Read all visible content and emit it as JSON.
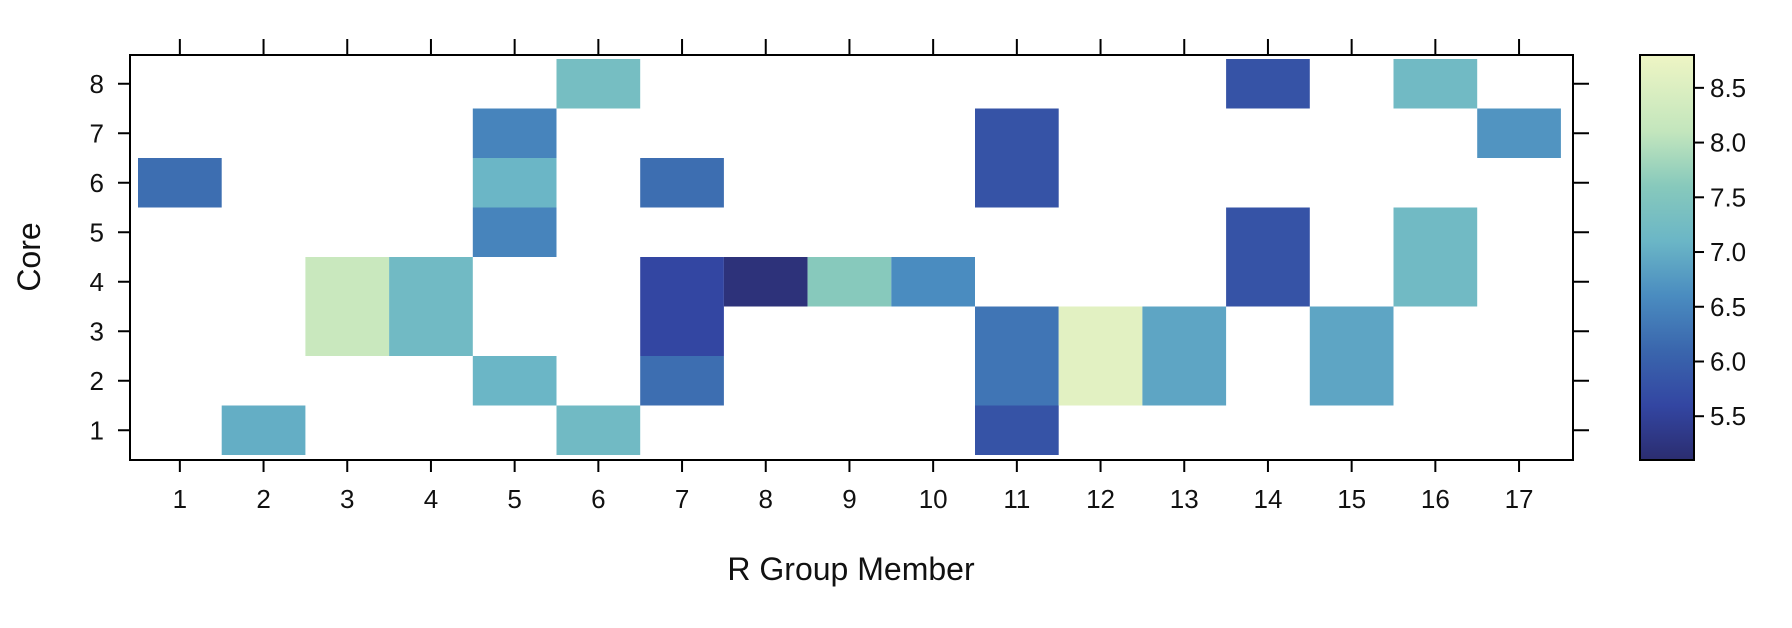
{
  "chart_data": {
    "type": "heatmap",
    "title": "",
    "xlabel": "R Group Member",
    "ylabel": "Core",
    "x_ticks": [
      "1",
      "2",
      "3",
      "4",
      "5",
      "6",
      "7",
      "8",
      "9",
      "10",
      "11",
      "12",
      "13",
      "14",
      "15",
      "16",
      "17"
    ],
    "y_ticks": [
      "1",
      "2",
      "3",
      "4",
      "5",
      "6",
      "7",
      "8"
    ],
    "colorbar": {
      "range": [
        5.1,
        8.8
      ],
      "ticks": [
        "5.5",
        "6.0",
        "6.5",
        "7.0",
        "7.5",
        "8.0",
        "8.5"
      ],
      "tick_values": [
        5.5,
        6.0,
        6.5,
        7.0,
        7.5,
        8.0,
        8.5
      ],
      "stops": [
        {
          "v": 5.1,
          "c": "#2b2d70"
        },
        {
          "v": 5.6,
          "c": "#3346a2"
        },
        {
          "v": 6.1,
          "c": "#3a66ad"
        },
        {
          "v": 6.6,
          "c": "#4a8cc0"
        },
        {
          "v": 7.1,
          "c": "#6bb6c6"
        },
        {
          "v": 7.6,
          "c": "#87c9bc"
        },
        {
          "v": 8.1,
          "c": "#c3e6bd"
        },
        {
          "v": 8.8,
          "c": "#eef5c4"
        }
      ]
    },
    "cells": [
      {
        "x": 1,
        "y": 6,
        "value": 6.2
      },
      {
        "x": 2,
        "y": 1,
        "value": 7.0
      },
      {
        "x": 3,
        "y": 3,
        "value": 8.2
      },
      {
        "x": 3,
        "y": 4,
        "value": 8.2
      },
      {
        "x": 4,
        "y": 3,
        "value": 7.2
      },
      {
        "x": 4,
        "y": 4,
        "value": 7.2
      },
      {
        "x": 5,
        "y": 2,
        "value": 7.1
      },
      {
        "x": 5,
        "y": 5,
        "value": 6.5
      },
      {
        "x": 5,
        "y": 6,
        "value": 7.1
      },
      {
        "x": 5,
        "y": 7,
        "value": 6.5
      },
      {
        "x": 6,
        "y": 1,
        "value": 7.2
      },
      {
        "x": 6,
        "y": 8,
        "value": 7.3
      },
      {
        "x": 7,
        "y": 2,
        "value": 6.2
      },
      {
        "x": 7,
        "y": 3,
        "value": 5.6
      },
      {
        "x": 7,
        "y": 4,
        "value": 5.6
      },
      {
        "x": 7,
        "y": 6,
        "value": 6.2
      },
      {
        "x": 8,
        "y": 4,
        "value": 5.2
      },
      {
        "x": 9,
        "y": 4,
        "value": 7.6
      },
      {
        "x": 10,
        "y": 4,
        "value": 6.6
      },
      {
        "x": 11,
        "y": 1,
        "value": 5.8
      },
      {
        "x": 11,
        "y": 2,
        "value": 6.3
      },
      {
        "x": 11,
        "y": 3,
        "value": 6.3
      },
      {
        "x": 11,
        "y": 6,
        "value": 5.8
      },
      {
        "x": 11,
        "y": 7,
        "value": 5.8
      },
      {
        "x": 12,
        "y": 2,
        "value": 8.6
      },
      {
        "x": 12,
        "y": 3,
        "value": 8.6
      },
      {
        "x": 13,
        "y": 2,
        "value": 6.9
      },
      {
        "x": 13,
        "y": 3,
        "value": 6.9
      },
      {
        "x": 14,
        "y": 4,
        "value": 5.8
      },
      {
        "x": 14,
        "y": 5,
        "value": 5.8
      },
      {
        "x": 14,
        "y": 8,
        "value": 5.8
      },
      {
        "x": 15,
        "y": 2,
        "value": 6.9
      },
      {
        "x": 15,
        "y": 3,
        "value": 6.9
      },
      {
        "x": 16,
        "y": 4,
        "value": 7.2
      },
      {
        "x": 16,
        "y": 5,
        "value": 7.2
      },
      {
        "x": 16,
        "y": 8,
        "value": 7.2
      },
      {
        "x": 17,
        "y": 7,
        "value": 6.7
      }
    ]
  }
}
